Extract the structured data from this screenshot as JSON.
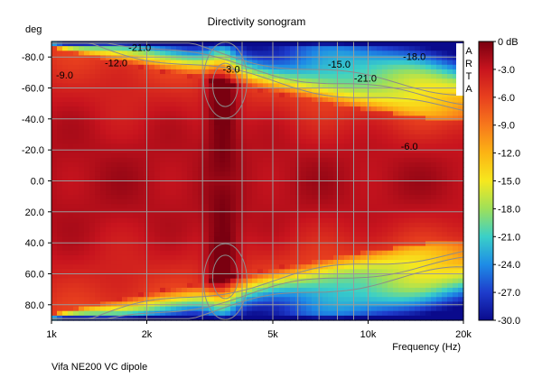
{
  "chart_data": {
    "type": "heatmap",
    "title": "Directivity sonogram",
    "ylabel": "deg",
    "xlabel": "Frequency (Hz)",
    "footer": "Vifa NE200 VC dipole",
    "watermark": [
      "A",
      "R",
      "T",
      "A"
    ],
    "x_scale": "log",
    "xlim": [
      1000,
      20000
    ],
    "ylim": [
      -90,
      90
    ],
    "x_ticks": [
      {
        "value": 1000,
        "label": "1k"
      },
      {
        "value": 2000,
        "label": "2k"
      },
      {
        "value": 5000,
        "label": "5k"
      },
      {
        "value": 10000,
        "label": "10k"
      },
      {
        "value": 20000,
        "label": "20k"
      }
    ],
    "x_gridlines": [
      1000,
      2000,
      3000,
      4000,
      5000,
      6000,
      7000,
      8000,
      9000,
      10000,
      20000
    ],
    "y_ticks": [
      -80,
      -60,
      -40,
      -20,
      0,
      20,
      40,
      60,
      80
    ],
    "y_tick_labels": [
      "-80.0",
      "-60.0",
      "-40.0",
      "-20.0",
      "0.0",
      "20.0",
      "40.0",
      "60.0",
      "80.0"
    ],
    "colorbar": {
      "range": [
        -30,
        0
      ],
      "labels": [
        "0 dB",
        "-3.0",
        "-6.0",
        "-9.0",
        "-12.0",
        "-15.0",
        "-18.0",
        "-21.0",
        "-24.0",
        "-27.0",
        "-30.0"
      ],
      "colors": [
        "#7a0010",
        "#c8141e",
        "#e8401e",
        "#f7781c",
        "#fcb414",
        "#f6e81e",
        "#9ee05a",
        "#3ad0c8",
        "#1e8ce6",
        "#1e3ccc",
        "#0a0a8c"
      ]
    },
    "contour_labels": [
      {
        "text": "-21.0",
        "freq": 1900,
        "deg": -84
      },
      {
        "text": "-12.0",
        "freq": 1600,
        "deg": -74
      },
      {
        "text": "-9.0",
        "freq": 1100,
        "deg": -66
      },
      {
        "text": "-3.0",
        "freq": 3700,
        "deg": -70
      },
      {
        "text": "-15.0",
        "freq": 8100,
        "deg": -73
      },
      {
        "text": "-18.0",
        "freq": 14000,
        "deg": -78
      },
      {
        "text": "-21.0",
        "freq": 9800,
        "deg": -64
      },
      {
        "text": "-6.0",
        "freq": 13500,
        "deg": -20
      }
    ],
    "grid": true,
    "colormap": "blue-cyan-yellow-red"
  }
}
